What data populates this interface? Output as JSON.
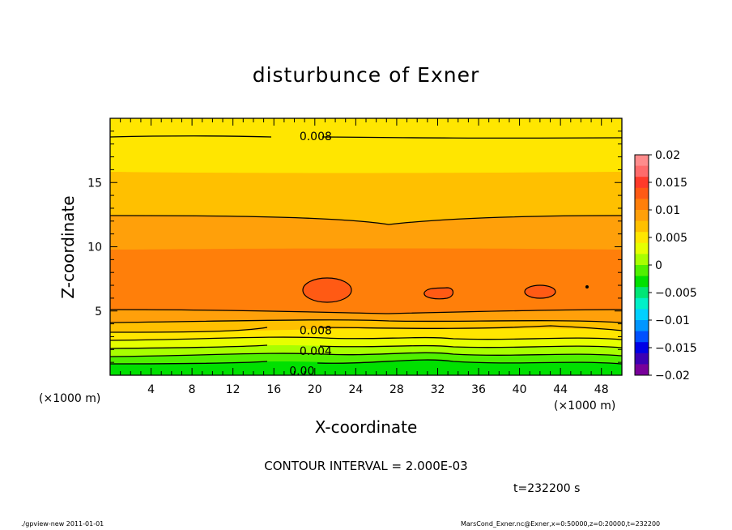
{
  "chart_data": {
    "type": "contour",
    "title": "disturbunce of Exner",
    "xlabel": "X-coordinate",
    "ylabel": "Z-coordinate",
    "x_unit_label": "(×1000 m)",
    "xlim": [
      0,
      50
    ],
    "ylim": [
      0,
      20
    ],
    "x_ticks": [
      "4",
      "8",
      "12",
      "16",
      "20",
      "24",
      "28",
      "32",
      "36",
      "40",
      "44",
      "48"
    ],
    "y_ticks": [
      "5",
      "10",
      "15"
    ],
    "contour_interval_text": "CONTOUR INTERVAL = 2.000E-03",
    "contour_labels": [
      {
        "text": "0.008",
        "x": 18.5,
        "z": 18.6
      },
      {
        "text": "0.008",
        "x": 18.5,
        "z": 3.5
      },
      {
        "text": "0.004",
        "x": 18.5,
        "z": 1.9
      },
      {
        "text": "0.00",
        "x": 17.5,
        "z": 0.35
      }
    ],
    "colorbar": {
      "labels": [
        "0.02",
        "0.015",
        "0.01",
        "0.005",
        "0",
        "−0.005",
        "−0.01",
        "−0.015",
        "−0.02"
      ],
      "colors": [
        "#ff8c8c",
        "#ff6b6b",
        "#ff3a2a",
        "#ff5a14",
        "#ff7f0a",
        "#ffa00a",
        "#ffc000",
        "#ffe600",
        "#e6ff00",
        "#a8ff00",
        "#50f000",
        "#00e000",
        "#00e676",
        "#00f0c8",
        "#00d0ff",
        "#0096ff",
        "#0050ff",
        "#0000e6",
        "#3c00b4",
        "#78009a"
      ]
    },
    "time_label": "t=232200 s",
    "footer_left": "./gpview-new   2011-01-01",
    "footer_right": "MarsCond_Exner.nc@Exner,x=0:50000,z=0:20000,t=232200"
  }
}
